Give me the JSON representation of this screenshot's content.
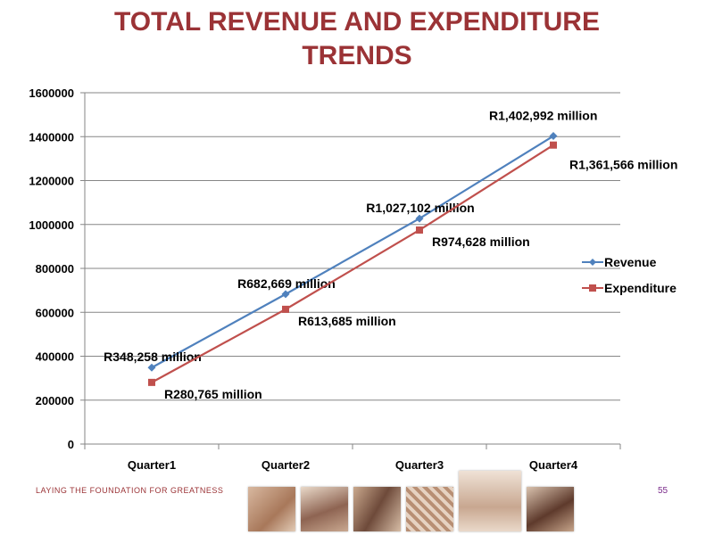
{
  "slide": {
    "title_line1": "TOTAL REVENUE AND EXPENDITURE",
    "title_line2": "TRENDS",
    "footer_text": "LAYING THE FOUNDATION FOR GREATNESS",
    "page_number": "55"
  },
  "colors": {
    "title": "#9b3336",
    "revenue": "#4f81bd",
    "expenditure": "#c0504d"
  },
  "chart_data": {
    "type": "line",
    "categories": [
      "Quarter1",
      "Quarter2",
      "Quarter3",
      "Quarter4"
    ],
    "ylim": [
      0,
      1600000
    ],
    "y_ticks": [
      "0",
      "200000",
      "400000",
      "600000",
      "800000",
      "1000000",
      "1200000",
      "1400000",
      "1600000"
    ],
    "grid": true,
    "legend_position": "right",
    "series": [
      {
        "name": "Revenue",
        "values": [
          348258,
          682669,
          1027102,
          1402992
        ],
        "labels": [
          "R348,258 million",
          "R682,669 million",
          "R1,027,102 million",
          "R1,402,992 million"
        ],
        "marker": "diamond"
      },
      {
        "name": "Expenditure",
        "values": [
          280765,
          613685,
          974628,
          1361566
        ],
        "labels": [
          "R280,765 million",
          "R613,685 million",
          "R974,628 million",
          "R1,361,566 million"
        ],
        "marker": "square"
      }
    ]
  }
}
